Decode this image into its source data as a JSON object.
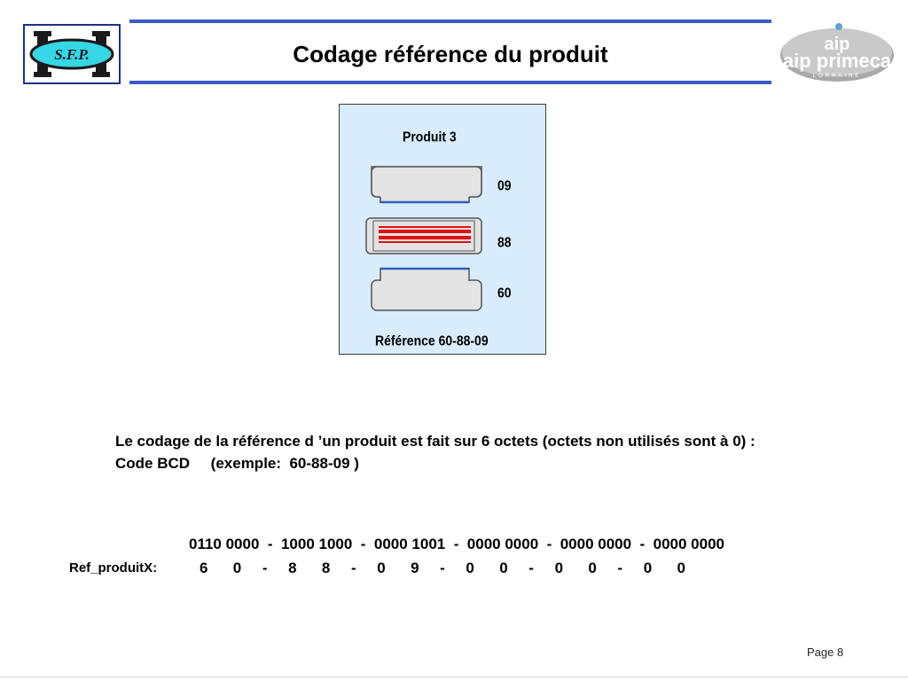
{
  "header": {
    "title": "Codage référence du produit",
    "logo_left_text": "S.F.P.",
    "logo_right_text": "aip primeca",
    "logo_right_sub": "LORRAINE"
  },
  "diagram": {
    "product": "Produit 3",
    "bytes": [
      "09",
      "88",
      "60"
    ],
    "reference": "Référence  60-88-09",
    "colors": {
      "panel_bg": "#d8ecfc",
      "slot_fill": "#e3e3e3",
      "slot_stroke": "#555555",
      "blue_line": "#2f5fbf",
      "red_line": "#e01010"
    }
  },
  "description": {
    "line1": "Le codage de la référence d ’un produit est fait sur 6 octets (octets non utilisés sont à 0) :",
    "line2": "Code BCD     (exemple:  60-88-09 )"
  },
  "encoding": {
    "label": "Ref_produitX:",
    "binary": "0110 0000  -  1000 1000  -  0000 1001  -  0000 0000  -  0000 0000  -  0000 0000",
    "decimal": "6      0     -     8      8     -     0      9     -     0      0     -     0      0     -     0      0"
  },
  "footer": {
    "page": "Page 8"
  }
}
